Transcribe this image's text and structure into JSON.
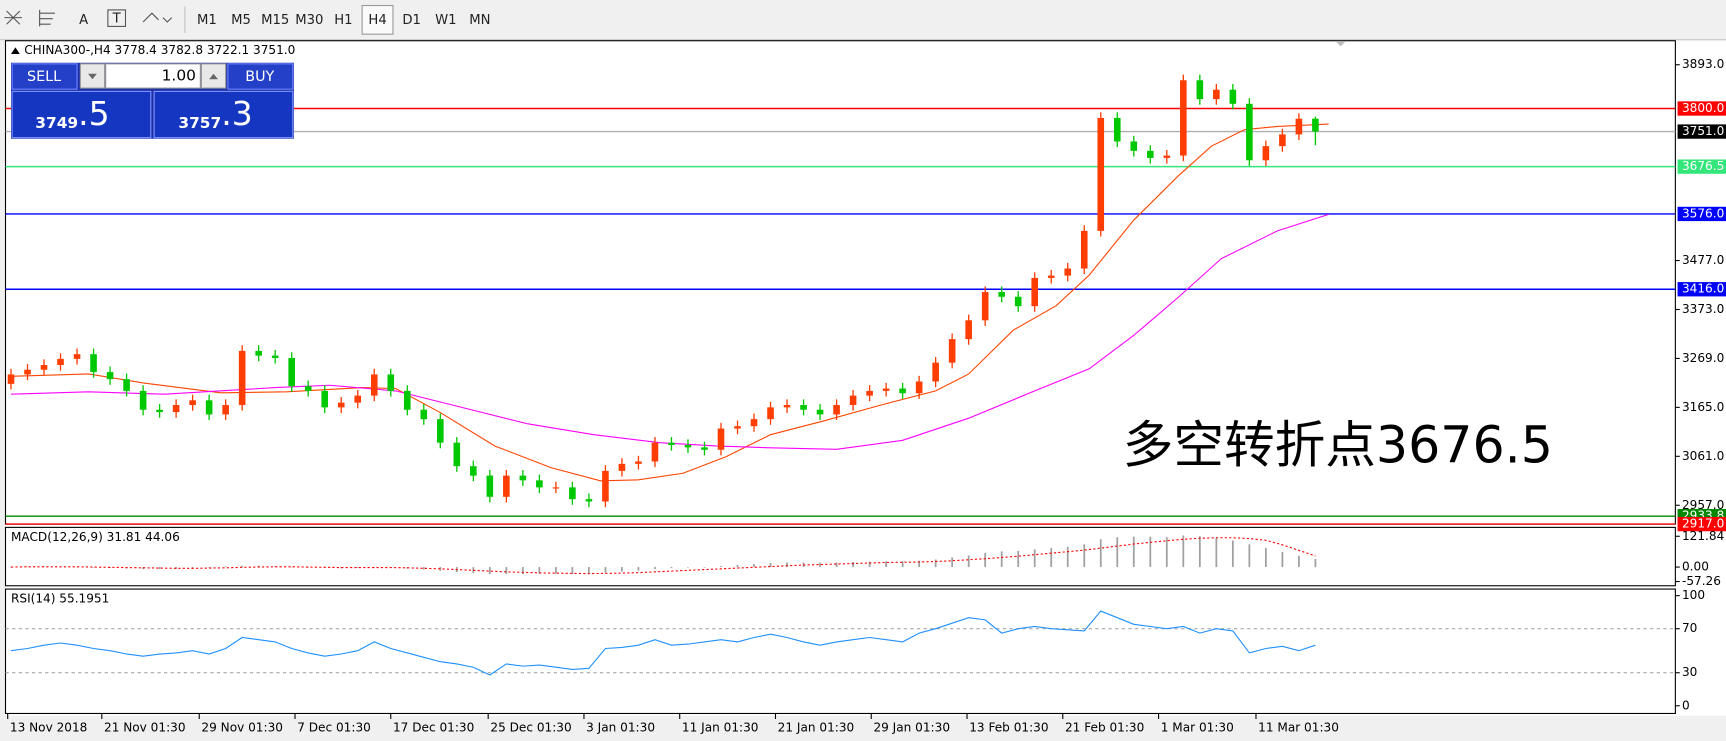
{
  "toolbar": {
    "tools": [
      "A",
      "T"
    ],
    "timeframes": [
      "M1",
      "M5",
      "M15",
      "M30",
      "H1",
      "H4",
      "D1",
      "W1",
      "MN"
    ],
    "active": "H4"
  },
  "trade_panel": {
    "sell_label": "SELL",
    "buy_label": "BUY",
    "lot": "1.00",
    "sell_price": {
      "main": "3749",
      "pip": ".5"
    },
    "buy_price": {
      "main": "3757",
      "pip": ".3"
    }
  },
  "chart_data": {
    "type": "candlestick",
    "header": "CHINA300-,H4  3778.4 3782.8 3722.1 3751.0",
    "annotation": "多空转折点3676.5",
    "up_color": "#ff3d00",
    "down_color": "#00c800",
    "xlim": [
      -0.333,
      100.8
    ],
    "ylim": [
      2917,
      3944
    ],
    "yticks": [
      {
        "value": 3893,
        "label": "3893.0"
      },
      {
        "value": 3477,
        "label": "3477.0"
      },
      {
        "value": 3373,
        "label": "3373.0"
      },
      {
        "value": 3269,
        "label": "3269.0"
      },
      {
        "value": 3165,
        "label": "3165.0"
      },
      {
        "value": 3061,
        "label": "3061.0"
      },
      {
        "value": 2957,
        "label": "2957.0"
      }
    ],
    "xticks": [
      {
        "value": -0.2,
        "label": "13 Nov 2018"
      },
      {
        "value": 5.5,
        "label": "21 Nov 01:30"
      },
      {
        "value": 11.4,
        "label": "29 Nov 01:30"
      },
      {
        "value": 17.2,
        "label": "7 Dec 01:30"
      },
      {
        "value": 23,
        "label": "17 Dec 01:30"
      },
      {
        "value": 28.9,
        "label": "25 Dec 01:30"
      },
      {
        "value": 34.7,
        "label": "3 Jan 01:30"
      },
      {
        "value": 40.5,
        "label": "11 Jan 01:30"
      },
      {
        "value": 46.3,
        "label": "21 Jan 01:30"
      },
      {
        "value": 52.1,
        "label": "29 Jan 01:30"
      },
      {
        "value": 57.9,
        "label": "13 Feb 01:30"
      },
      {
        "value": 63.7,
        "label": "21 Feb 01:30"
      },
      {
        "value": 69.5,
        "label": "1 Mar 01:30"
      },
      {
        "value": 75.4,
        "label": "11 Mar 01:30"
      }
    ],
    "levels": [
      {
        "value": 3800,
        "label": "3800.0",
        "color": "#ff0000"
      },
      {
        "value": 3751,
        "label": "3751.0",
        "color": "#000000"
      },
      {
        "value": 3676.5,
        "label": "3676.5",
        "color": "#33e67a"
      },
      {
        "value": 3576,
        "label": "3576.0",
        "color": "#0000ff"
      },
      {
        "value": 3416,
        "label": "3416.0",
        "color": "#0000ff"
      },
      {
        "value": 2933.8,
        "label": "2933.8",
        "color": "#008800"
      },
      {
        "value": 2917,
        "label": "2917.0",
        "color": "#ff0000"
      }
    ],
    "open": [
      3215,
      3235,
      3245,
      3255,
      3268,
      3278,
      3240,
      3225,
      3200,
      3160,
      3155,
      3170,
      3180,
      3150,
      3170,
      3285,
      3275,
      3270,
      3210,
      3200,
      3165,
      3175,
      3190,
      3235,
      3200,
      3160,
      3140,
      3090,
      3040,
      3020,
      2975,
      3020,
      3010,
      2995,
      2995,
      2970,
      2965,
      3030,
      3045,
      3050,
      3090,
      3085,
      3080,
      3075,
      3120,
      3125,
      3140,
      3165,
      3170,
      3160,
      3150,
      3170,
      3190,
      3200,
      3205,
      3195,
      3220,
      3260,
      3310,
      3350,
      3410,
      3400,
      3380,
      3440,
      3445,
      3460,
      3540,
      3780,
      3730,
      3710,
      3695,
      3700,
      3860,
      3820,
      3840,
      3810,
      3690,
      3720,
      3745,
      3778.4
    ],
    "high": [
      3247,
      3257,
      3267,
      3280,
      3290,
      3290,
      3252,
      3237,
      3212,
      3172,
      3182,
      3192,
      3192,
      3182,
      3297,
      3297,
      3287,
      3282,
      3222,
      3212,
      3187,
      3202,
      3247,
      3247,
      3212,
      3172,
      3152,
      3102,
      3052,
      3032,
      3032,
      3032,
      3022,
      3007,
      3007,
      2982,
      3042,
      3057,
      3062,
      3102,
      3102,
      3097,
      3092,
      3132,
      3137,
      3152,
      3177,
      3182,
      3182,
      3172,
      3182,
      3202,
      3212,
      3217,
      3217,
      3232,
      3272,
      3322,
      3362,
      3422,
      3422,
      3412,
      3452,
      3457,
      3472,
      3552,
      3792,
      3792,
      3742,
      3722,
      3712,
      3872,
      3872,
      3852,
      3852,
      3822,
      3732,
      3757,
      3790,
      3782.8
    ],
    "low": [
      3203,
      3223,
      3233,
      3243,
      3256,
      3228,
      3213,
      3188,
      3148,
      3143,
      3143,
      3158,
      3138,
      3138,
      3158,
      3263,
      3258,
      3198,
      3188,
      3153,
      3153,
      3163,
      3178,
      3188,
      3148,
      3128,
      3078,
      3028,
      3008,
      2963,
      2963,
      2998,
      2983,
      2983,
      2958,
      2953,
      2953,
      3018,
      3033,
      3038,
      3073,
      3068,
      3063,
      3063,
      3108,
      3113,
      3128,
      3153,
      3148,
      3138,
      3138,
      3158,
      3178,
      3188,
      3183,
      3183,
      3208,
      3248,
      3298,
      3338,
      3388,
      3368,
      3368,
      3428,
      3433,
      3448,
      3528,
      3718,
      3698,
      3683,
      3683,
      3688,
      3808,
      3808,
      3798,
      3678,
      3678,
      3708,
      3733,
      3722.1
    ],
    "close": [
      3235,
      3245,
      3255,
      3268,
      3278,
      3240,
      3225,
      3200,
      3160,
      3155,
      3170,
      3180,
      3150,
      3170,
      3285,
      3275,
      3270,
      3210,
      3200,
      3165,
      3175,
      3190,
      3235,
      3200,
      3160,
      3140,
      3090,
      3040,
      3020,
      2975,
      3020,
      3010,
      2995,
      2995,
      2970,
      2965,
      3030,
      3045,
      3050,
      3090,
      3085,
      3080,
      3075,
      3120,
      3125,
      3140,
      3165,
      3170,
      3160,
      3150,
      3170,
      3190,
      3200,
      3205,
      3195,
      3220,
      3260,
      3310,
      3350,
      3410,
      3400,
      3380,
      3440,
      3445,
      3460,
      3540,
      3780,
      3730,
      3710,
      3695,
      3700,
      3860,
      3820,
      3840,
      3810,
      3690,
      3720,
      3745,
      3778.4,
      3751
    ],
    "ma": [
      {
        "color": "#ff4500",
        "x": [
          0,
          4.7,
          8,
          12.7,
          16.7,
          21.3,
          23.3,
          26,
          29.3,
          32.7,
          35.7,
          38,
          40.7,
          43.3,
          46,
          49.3,
          52.7,
          56,
          58,
          60.7,
          63.3,
          65.3,
          68,
          70.7,
          72.7,
          74.7,
          76.7,
          79.8
        ],
        "values": [
          3231,
          3236,
          3217,
          3196,
          3198,
          3207,
          3205,
          3154,
          3083,
          3037,
          3009,
          3011,
          3025,
          3060,
          3107,
          3137,
          3170,
          3200,
          3236,
          3329,
          3381,
          3446,
          3563,
          3657,
          3720,
          3755,
          3762,
          3767
        ]
      },
      {
        "color": "#ff00ff",
        "x": [
          0,
          4.7,
          9.3,
          16,
          19.3,
          23.3,
          27.3,
          31.3,
          35.3,
          39.3,
          42.7,
          46,
          50,
          54,
          58,
          62,
          65.3,
          68,
          70.7,
          73.3,
          76.7,
          79.8
        ],
        "values": [
          3193,
          3198,
          3193,
          3207,
          3212,
          3200,
          3165,
          3130,
          3107,
          3090,
          3083,
          3079,
          3076,
          3095,
          3142,
          3200,
          3247,
          3318,
          3399,
          3481,
          3540,
          3575
        ]
      }
    ],
    "macd": {
      "label": "MACD(12,26,9) 31.81 44.06",
      "ylim": [
        -74,
        157
      ],
      "yticks": [
        {
          "value": 121.84,
          "label": "121.84"
        },
        {
          "value": 0,
          "label": "0.00"
        },
        {
          "value": -57.26,
          "label": "-57.26"
        }
      ],
      "hist_color": "#a0a0a0",
      "signal_color": "#ff0000",
      "histogram": [
        0,
        2,
        3,
        2,
        1,
        -2,
        -4,
        -6,
        -8,
        -8,
        -7,
        -5,
        -2,
        2,
        5,
        6,
        4,
        1,
        -2,
        -4,
        -5,
        -3,
        0,
        -2,
        -6,
        -10,
        -15,
        -20,
        -24,
        -28,
        -28,
        -28,
        -27,
        -27,
        -28,
        -27,
        -22,
        -18,
        -14,
        -8,
        -4,
        -2,
        0,
        4,
        8,
        12,
        16,
        18,
        18,
        17,
        18,
        20,
        22,
        23,
        23,
        25,
        30,
        38,
        46,
        56,
        62,
        64,
        70,
        75,
        80,
        90,
        110,
        118,
        120,
        120,
        118,
        125,
        122,
        115,
        105,
        90,
        75,
        60,
        45,
        32
      ],
      "signal": [
        0,
        1,
        1,
        1,
        1,
        0,
        -1,
        -2,
        -3,
        -4,
        -5,
        -5,
        -4,
        -3,
        -1,
        0,
        1,
        1,
        0,
        -1,
        -2,
        -2,
        -2,
        -2,
        -3,
        -5,
        -7,
        -10,
        -13,
        -16,
        -19,
        -21,
        -23,
        -24,
        -25,
        -26,
        -25,
        -24,
        -22,
        -19,
        -16,
        -13,
        -10,
        -7,
        -4,
        -1,
        2,
        5,
        8,
        10,
        12,
        14,
        16,
        18,
        19,
        20,
        22,
        25,
        29,
        33,
        38,
        43,
        49,
        55,
        61,
        67,
        75,
        83,
        91,
        98,
        104,
        110,
        114,
        116,
        116,
        113,
        106,
        88,
        66,
        44
      ]
    },
    "rsi": {
      "label": "RSI(14) 55.1951",
      "ylim": [
        -7,
        106
      ],
      "yticks": [
        100,
        70,
        30,
        0
      ],
      "levels": [
        70,
        30
      ],
      "color": "#1e90ff",
      "values": [
        50,
        52,
        55,
        57,
        55,
        52,
        50,
        47,
        45,
        47,
        48,
        50,
        47,
        52,
        62,
        60,
        58,
        52,
        48,
        45,
        47,
        50,
        58,
        52,
        48,
        44,
        40,
        38,
        35,
        28,
        38,
        36,
        37,
        35,
        33,
        34,
        52,
        53,
        55,
        60,
        55,
        56,
        58,
        60,
        58,
        62,
        65,
        62,
        58,
        55,
        58,
        60,
        62,
        60,
        58,
        66,
        70,
        75,
        80,
        78,
        66,
        70,
        72,
        70,
        69,
        68,
        86,
        80,
        74,
        72,
        70,
        72,
        66,
        70,
        68,
        48,
        52,
        54,
        50,
        55
      ]
    }
  }
}
